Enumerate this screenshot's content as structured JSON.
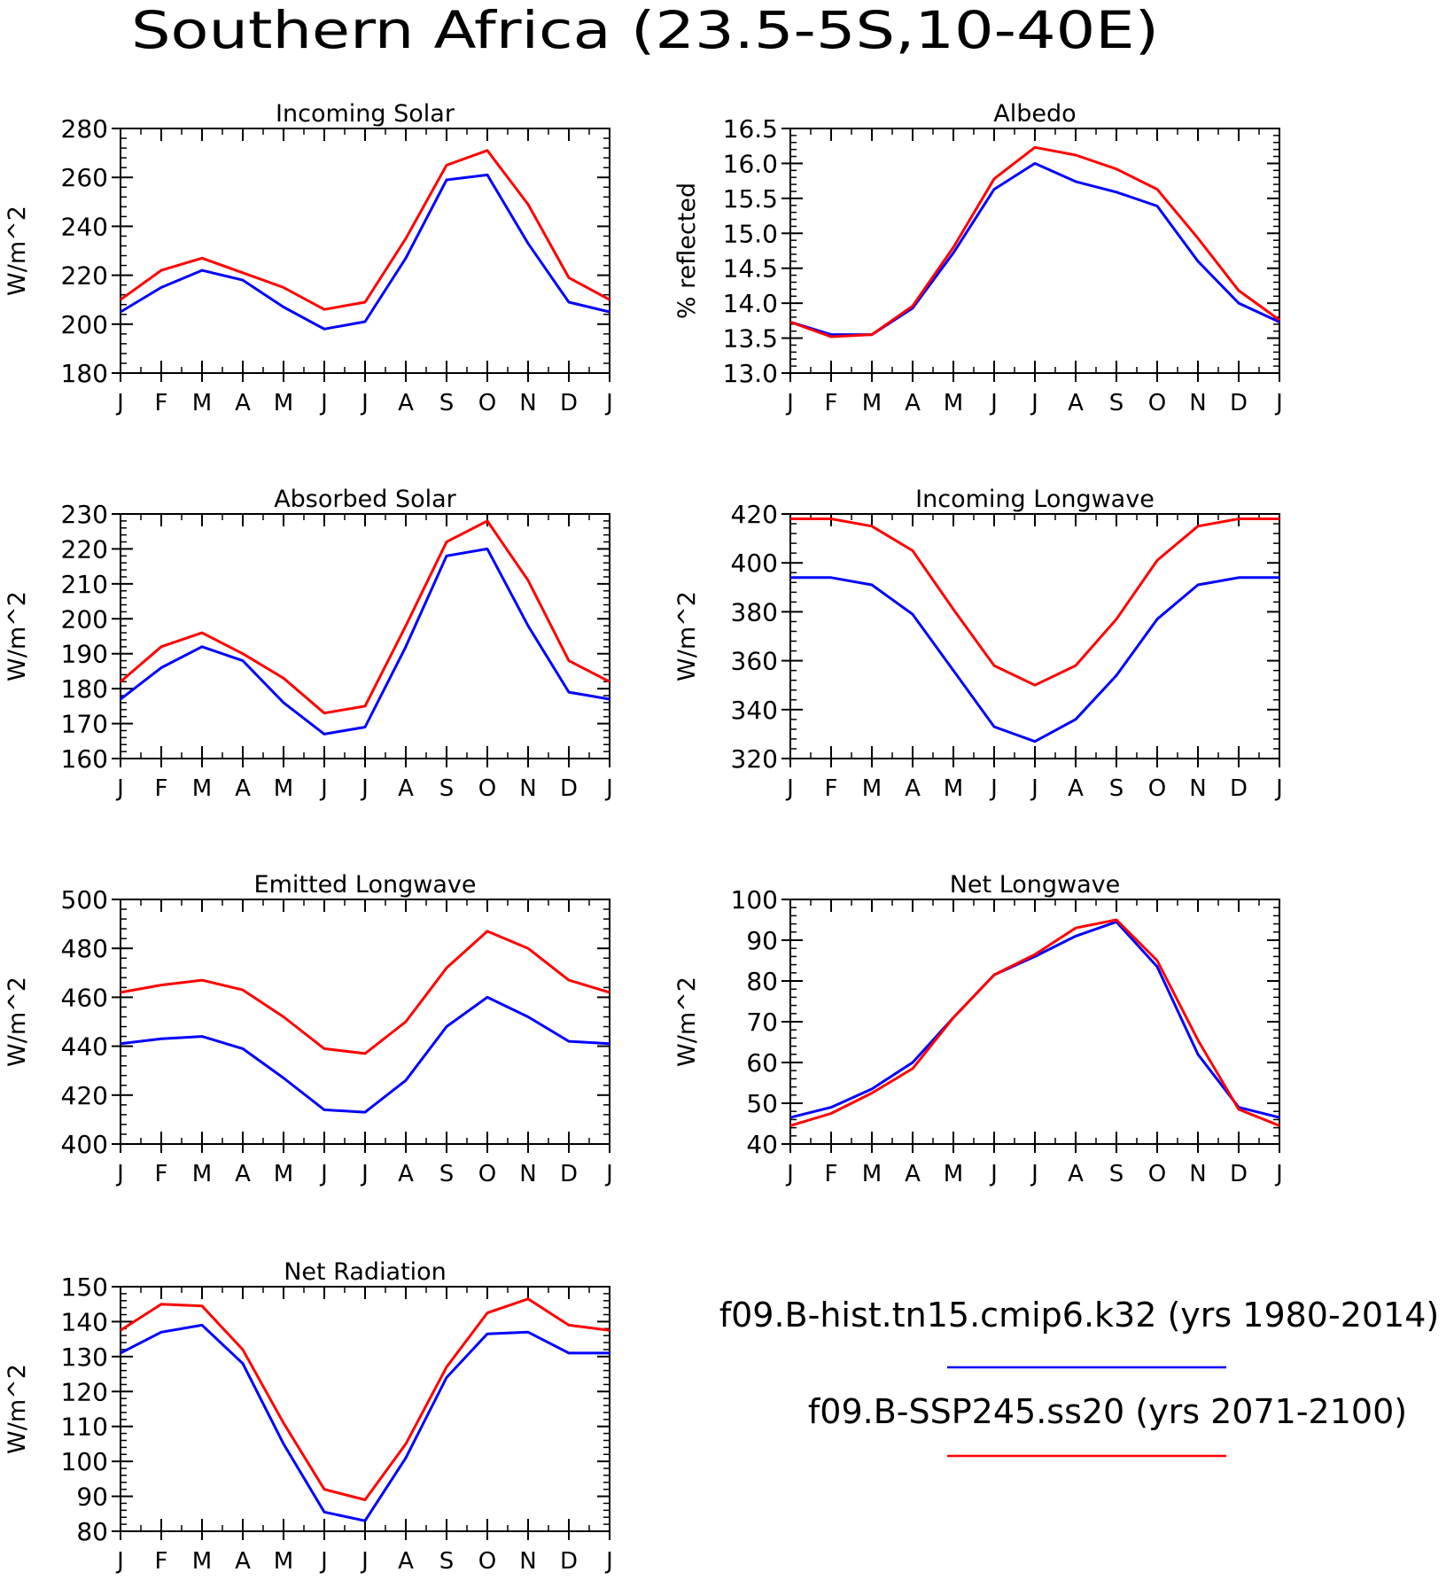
{
  "figure_title": "Southern Africa (23.5-5S,10-40E)",
  "legend": {
    "entries": [
      {
        "label": "f09.B-hist.tn15.cmip6.k32 (yrs 1980-2014)",
        "color": "#0000ff"
      },
      {
        "label": "f09.B-SSP245.ss20 (yrs 2071-2100)",
        "color": "#ff0000"
      }
    ]
  },
  "chart_data": [
    {
      "type": "line",
      "title": "Incoming Solar",
      "ylabel": "W/m^2",
      "categories": [
        "J",
        "F",
        "M",
        "A",
        "M",
        "J",
        "J",
        "A",
        "S",
        "O",
        "N",
        "D",
        "J"
      ],
      "ylim": [
        180,
        280
      ],
      "yticks": [
        180,
        200,
        220,
        240,
        260,
        280
      ],
      "series": [
        {
          "color": "#0000ff",
          "values": [
            205,
            215,
            222,
            218,
            207,
            198,
            201,
            227,
            259,
            261,
            233,
            209,
            205
          ]
        },
        {
          "color": "#ff0000",
          "values": [
            210,
            222,
            227,
            221,
            215,
            206,
            209,
            235,
            265,
            271,
            249,
            219,
            210
          ]
        }
      ]
    },
    {
      "type": "line",
      "title": "Albedo",
      "ylabel": "% reflected",
      "categories": [
        "J",
        "F",
        "M",
        "A",
        "M",
        "J",
        "J",
        "A",
        "S",
        "O",
        "N",
        "D",
        "J"
      ],
      "ylim": [
        13.0,
        16.5
      ],
      "yticks": [
        13.0,
        13.5,
        14.0,
        14.5,
        15.0,
        15.5,
        16.0,
        16.5
      ],
      "ytick_labels": [
        "13.0",
        "13.5",
        "14.0",
        "14.5",
        "15.0",
        "15.5",
        "16.0",
        "16.5"
      ],
      "series": [
        {
          "color": "#0000ff",
          "values": [
            13.73,
            13.55,
            13.55,
            13.93,
            14.72,
            15.63,
            16.0,
            15.74,
            15.59,
            15.39,
            14.6,
            14.0,
            13.73
          ]
        },
        {
          "color": "#ff0000",
          "values": [
            13.73,
            13.52,
            13.55,
            13.96,
            14.8,
            15.78,
            16.23,
            16.12,
            15.92,
            15.63,
            14.93,
            14.18,
            13.76
          ]
        }
      ]
    },
    {
      "type": "line",
      "title": "Absorbed Solar",
      "ylabel": "W/m^2",
      "categories": [
        "J",
        "F",
        "M",
        "A",
        "M",
        "J",
        "J",
        "A",
        "S",
        "O",
        "N",
        "D",
        "J"
      ],
      "ylim": [
        160,
        230
      ],
      "yticks": [
        160,
        170,
        180,
        190,
        200,
        210,
        220,
        230
      ],
      "series": [
        {
          "color": "#0000ff",
          "values": [
            177,
            186,
            192,
            188,
            176,
            167,
            169,
            192,
            218,
            220,
            198,
            179,
            177
          ]
        },
        {
          "color": "#ff0000",
          "values": [
            182,
            192,
            196,
            190,
            183,
            173,
            175,
            198,
            222,
            228,
            211,
            188,
            182
          ]
        }
      ]
    },
    {
      "type": "line",
      "title": "Incoming Longwave",
      "ylabel": "W/m^2",
      "categories": [
        "J",
        "F",
        "M",
        "A",
        "M",
        "J",
        "J",
        "A",
        "S",
        "O",
        "N",
        "D",
        "J"
      ],
      "ylim": [
        320,
        420
      ],
      "yticks": [
        320,
        340,
        360,
        380,
        400,
        420
      ],
      "series": [
        {
          "color": "#0000ff",
          "values": [
            394,
            394,
            391,
            379,
            356,
            333,
            327,
            336,
            354,
            377,
            391,
            394,
            394
          ]
        },
        {
          "color": "#ff0000",
          "values": [
            418,
            418,
            415,
            405,
            381,
            358,
            350,
            358,
            377,
            401,
            415,
            418,
            418
          ]
        }
      ]
    },
    {
      "type": "line",
      "title": "Emitted Longwave",
      "ylabel": "W/m^2",
      "categories": [
        "J",
        "F",
        "M",
        "A",
        "M",
        "J",
        "J",
        "A",
        "S",
        "O",
        "N",
        "D",
        "J"
      ],
      "ylim": [
        400,
        500
      ],
      "yticks": [
        400,
        420,
        440,
        460,
        480,
        500
      ],
      "series": [
        {
          "color": "#0000ff",
          "values": [
            441,
            443,
            444,
            439,
            427,
            414,
            413,
            426,
            448,
            460,
            452,
            442,
            441
          ]
        },
        {
          "color": "#ff0000",
          "values": [
            462,
            465,
            467,
            463,
            452,
            439,
            437,
            450,
            472,
            487,
            480,
            467,
            462
          ]
        }
      ]
    },
    {
      "type": "line",
      "title": "Net Longwave",
      "ylabel": "W/m^2",
      "categories": [
        "J",
        "F",
        "M",
        "A",
        "M",
        "J",
        "J",
        "A",
        "S",
        "O",
        "N",
        "D",
        "J"
      ],
      "ylim": [
        40,
        100
      ],
      "yticks": [
        40,
        50,
        60,
        70,
        80,
        90,
        100
      ],
      "series": [
        {
          "color": "#0000ff",
          "values": [
            46.5,
            49,
            53.5,
            60,
            71,
            81.5,
            86,
            91,
            94.5,
            83.5,
            62,
            49,
            46.5
          ]
        },
        {
          "color": "#ff0000",
          "values": [
            44.5,
            47.5,
            52.5,
            58.5,
            71,
            81.5,
            86.5,
            93,
            95,
            85,
            65.5,
            48.5,
            44.5
          ]
        }
      ]
    },
    {
      "type": "line",
      "title": "Net Radiation",
      "ylabel": "W/m^2",
      "categories": [
        "J",
        "F",
        "M",
        "A",
        "M",
        "J",
        "J",
        "A",
        "S",
        "O",
        "N",
        "D",
        "J"
      ],
      "ylim": [
        80,
        150
      ],
      "yticks": [
        80,
        90,
        100,
        110,
        120,
        130,
        140,
        150
      ],
      "series": [
        {
          "color": "#0000ff",
          "values": [
            131,
            137,
            139,
            128,
            105,
            85.5,
            83,
            101,
            124,
            136.5,
            137,
            131,
            131
          ]
        },
        {
          "color": "#ff0000",
          "values": [
            137.5,
            145,
            144.5,
            132,
            111,
            92,
            89,
            105,
            127,
            142.5,
            146.5,
            139,
            137.5
          ]
        }
      ]
    }
  ]
}
